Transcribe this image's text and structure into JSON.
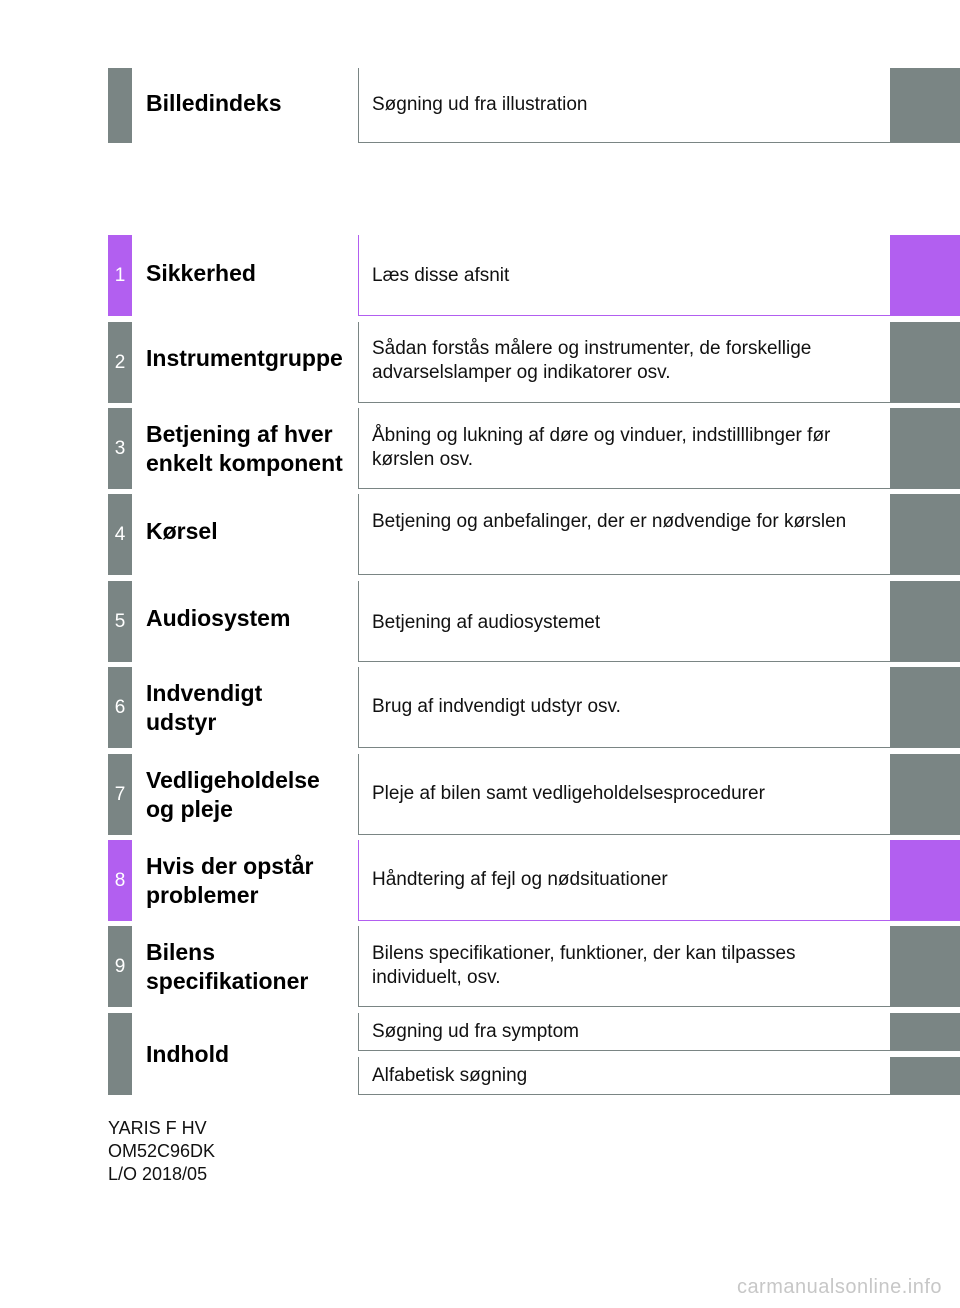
{
  "index": {
    "title": "Billedindeks",
    "description": "Søgning ud fra illustration"
  },
  "chapters": [
    {
      "number": "1",
      "title": "Sikkerhed",
      "description": "Læs disse afsnit"
    },
    {
      "number": "2",
      "title": "Instrumentgruppe",
      "description": "Sådan forstås målere og instrumenter, de forskellige advarselslamper og indikatorer osv."
    },
    {
      "number": "3",
      "title": "Betjening af hver enkelt komponent",
      "description": "Åbning og lukning af døre og vinduer, indstilllibnger før kørslen osv."
    },
    {
      "number": "4",
      "title": "Kørsel",
      "description": "Betjening og anbefalinger, der er nødvendige for kørslen"
    },
    {
      "number": "5",
      "title": "Audiosystem",
      "description": "Betjening af audiosystemet"
    },
    {
      "number": "6",
      "title": "Indvendigt udstyr",
      "description": "Brug af indvendigt udstyr osv."
    },
    {
      "number": "7",
      "title": "Vedligeholdelse og pleje",
      "description": "Pleje af bilen samt vedligeholdelsesprocedurer"
    },
    {
      "number": "8",
      "title": "Hvis der opstår problemer",
      "description": "Håndtering af fejl og nødsituationer"
    },
    {
      "number": "9",
      "title": "Bilens specifikationer",
      "description": "Bilens specifikationer, funktioner, der kan tilpasses individuelt, osv."
    }
  ],
  "contents": {
    "title": "Indhold",
    "search_symptom": "Søgning ud fra symptom",
    "search_alphabetic": "Alfabetisk søgning"
  },
  "footer": {
    "model": "YARIS F HV",
    "code": "OM52C96DK",
    "date": "L/O 2018/05"
  },
  "watermark": "carmanualsonline.info",
  "colors": {
    "tab_gray": "#7a8584",
    "tab_purple": "#b25ff0"
  }
}
